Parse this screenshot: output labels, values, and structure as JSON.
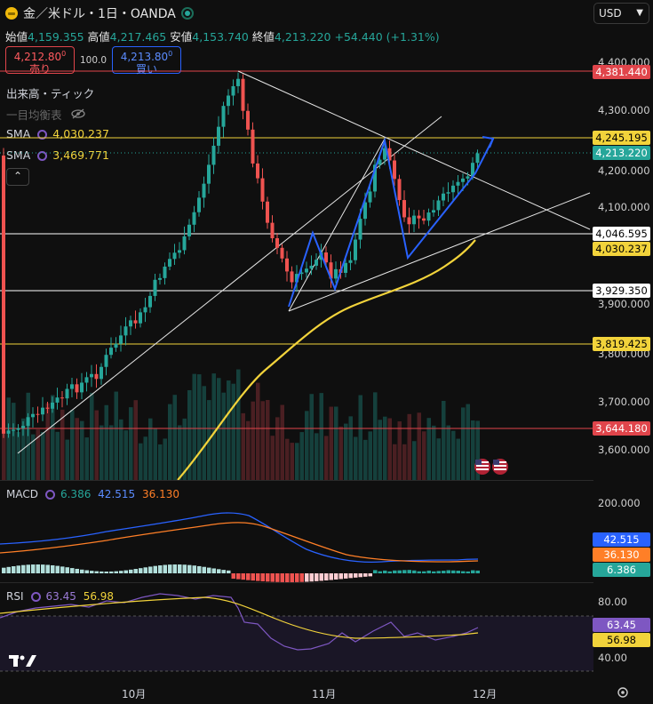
{
  "header": {
    "title": "金／米ドル・1日・OANDA",
    "open_label": "始値",
    "open": "4,159.355",
    "high_label": "高値",
    "high": "4,217.465",
    "low_label": "安値",
    "low": "4,153.740",
    "close_label": "終値",
    "close": "4,213.220",
    "change": "+54.440 (+1.31%)"
  },
  "trade": {
    "sell_price": "4,212.80",
    "sell_sup": "0",
    "sell_label": "売り",
    "buy_price": "4,213.80",
    "buy_sup": "0",
    "buy_label": "買い",
    "spread": "100.0"
  },
  "currency": "USD",
  "indicators": {
    "volume_label": "出来高・ティック",
    "ichimoku_label": "一目均衡表",
    "sma1_label": "SMA",
    "sma1_value": "4,030.237",
    "sma2_label": "SMA",
    "sma2_value": "3,469.771"
  },
  "price_axis": [
    "4,400.000",
    "4,300.000",
    "4,200.000",
    "4,100.000",
    "3,900.000",
    "3,800.000",
    "3,700.000",
    "3,600.000"
  ],
  "price_tags": {
    "t1": "4,381.440",
    "t2": "4,245.195",
    "t3": "4,213.220",
    "t4": "4,046.595",
    "t5": "4,030.237",
    "t6": "3,929.350",
    "t7": "3,819.425",
    "t8": "3,644.180"
  },
  "macd": {
    "label": "MACD",
    "v1": "6.386",
    "v2": "42.515",
    "v3": "36.130",
    "axis": "200.000",
    "tag1": "42.515",
    "tag2": "36.130",
    "tag3": "6.386"
  },
  "rsi": {
    "label": "RSI",
    "v1": "63.45",
    "v2": "56.98",
    "axis_hi": "80.00",
    "axis_lo": "40.00",
    "tag1": "63.45",
    "tag2": "56.98"
  },
  "x_axis": [
    "10月",
    "11月",
    "12月"
  ],
  "colors": {
    "up": "#26a69a",
    "down": "#ef5350",
    "sma_yellow": "#f2d33b",
    "red_tag": "#e0454b",
    "blue": "#2962ff"
  },
  "icons": [
    "coin-icon",
    "live-dot-icon",
    "eye-slash-icon",
    "sma-settings-icon",
    "chevron-up-icon",
    "us-flag-icon",
    "settings-icon",
    "tradingview-logo"
  ]
}
